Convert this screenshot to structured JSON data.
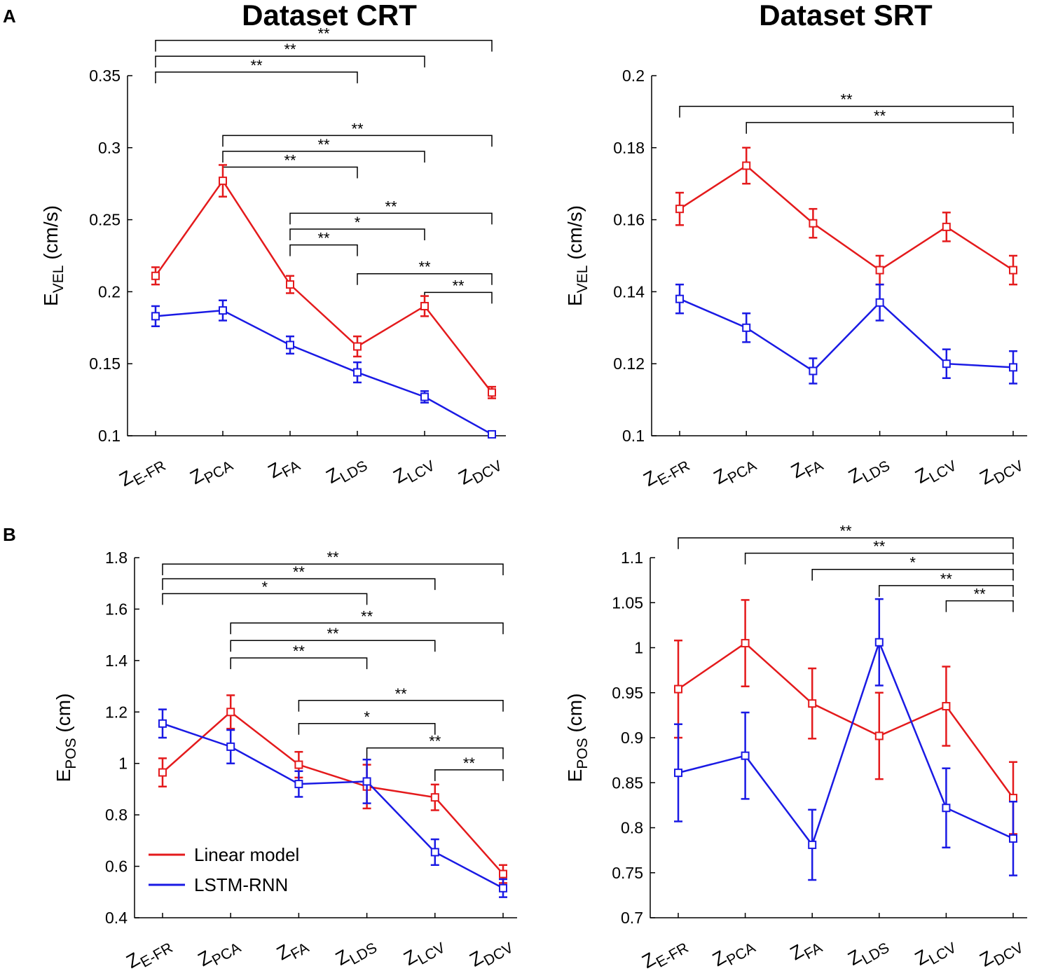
{
  "columns": [
    "Dataset CRT",
    "Dataset SRT"
  ],
  "row_labels": [
    "A",
    "B"
  ],
  "legend": [
    {
      "label": "Linear model",
      "color": "#e41a1c"
    },
    {
      "label": "LSTM-RNN",
      "color": "#1a1ae4"
    }
  ],
  "colors": {
    "linear": "#e41a1c",
    "lstm": "#1a1ae4",
    "axis": "#000000"
  },
  "chart_data": [
    {
      "id": "A-CRT",
      "type": "line",
      "categories": [
        [
          "Z",
          "E-FR"
        ],
        [
          "Z",
          "PCA"
        ],
        [
          "Z",
          "FA"
        ],
        [
          "Z",
          "LDS"
        ],
        [
          "Z",
          "LCV"
        ],
        [
          "Z",
          "DCV"
        ]
      ],
      "ylabel": {
        "main": "E",
        "sub": "VEL",
        "unit": " (cm/s)"
      },
      "ylim": [
        0.1,
        0.35
      ],
      "yticks": [
        "0.1",
        "0.15",
        "0.2",
        "0.25",
        "0.3",
        "0.35"
      ],
      "series": [
        {
          "name": "Linear model",
          "values": [
            0.211,
            0.277,
            0.205,
            0.162,
            0.19,
            0.13
          ],
          "err": [
            0.006,
            0.011,
            0.006,
            0.007,
            0.007,
            0.004
          ]
        },
        {
          "name": "LSTM-RNN",
          "values": [
            0.183,
            0.187,
            0.163,
            0.144,
            0.127,
            0.101
          ],
          "err": [
            0.007,
            0.007,
            0.006,
            0.007,
            0.004,
            0.002
          ]
        }
      ],
      "brackets": [
        {
          "from": 0,
          "to": 5,
          "y": 0.3745,
          "label": "**"
        },
        {
          "from": 0,
          "to": 3,
          "y": 0.3525,
          "label": "**"
        },
        {
          "from": 0,
          "to": 4,
          "y": 0.3635,
          "label": "**"
        },
        {
          "from": 1,
          "to": 5,
          "y": 0.3085,
          "label": "**"
        },
        {
          "from": 1,
          "to": 4,
          "y": 0.2975,
          "label": "**"
        },
        {
          "from": 1,
          "to": 3,
          "y": 0.2865,
          "label": "**"
        },
        {
          "from": 2,
          "to": 5,
          "y": 0.2545,
          "label": "**"
        },
        {
          "from": 2,
          "to": 4,
          "y": 0.2435,
          "label": "*"
        },
        {
          "from": 2,
          "to": 3,
          "y": 0.2325,
          "label": "**"
        },
        {
          "from": 3,
          "to": 5,
          "y": 0.2125,
          "label": "**"
        },
        {
          "from": 4,
          "to": 5,
          "y": 0.1995,
          "label": "**"
        }
      ]
    },
    {
      "id": "A-SRT",
      "type": "line",
      "categories": [
        [
          "Z",
          "E-FR"
        ],
        [
          "Z",
          "PCA"
        ],
        [
          "Z",
          "FA"
        ],
        [
          "Z",
          "LDS"
        ],
        [
          "Z",
          "LCV"
        ],
        [
          "Z",
          "DCV"
        ]
      ],
      "ylabel": {
        "main": "E",
        "sub": "VEL",
        "unit": " (cm/s)"
      },
      "ylim": [
        0.1,
        0.2
      ],
      "yticks": [
        "0.1",
        "0.12",
        "0.14",
        "0.16",
        "0.18",
        "0.2"
      ],
      "series": [
        {
          "name": "Linear model",
          "values": [
            0.163,
            0.175,
            0.159,
            0.146,
            0.158,
            0.146
          ],
          "err": [
            0.0045,
            0.005,
            0.004,
            0.004,
            0.004,
            0.004
          ]
        },
        {
          "name": "LSTM-RNN",
          "values": [
            0.138,
            0.13,
            0.118,
            0.137,
            0.12,
            0.119
          ],
          "err": [
            0.004,
            0.004,
            0.0035,
            0.005,
            0.004,
            0.0045
          ]
        }
      ],
      "brackets": [
        {
          "from": 0,
          "to": 5,
          "y": 0.1915,
          "label": "**"
        },
        {
          "from": 1,
          "to": 5,
          "y": 0.187,
          "label": "**"
        }
      ]
    },
    {
      "id": "B-CRT",
      "type": "line",
      "categories": [
        [
          "Z",
          "E-FR"
        ],
        [
          "Z",
          "PCA"
        ],
        [
          "Z",
          "FA"
        ],
        [
          "Z",
          "LDS"
        ],
        [
          "Z",
          "LCV"
        ],
        [
          "Z",
          "DCV"
        ]
      ],
      "ylabel": {
        "main": "E",
        "sub": "POS",
        "unit": " (cm)"
      },
      "ylim": [
        0.4,
        1.8
      ],
      "yticks": [
        "0.4",
        "0.6",
        "0.8",
        "1",
        "1.2",
        "1.4",
        "1.6",
        "1.8"
      ],
      "series": [
        {
          "name": "Linear model",
          "values": [
            0.965,
            1.2,
            0.995,
            0.91,
            0.868,
            0.57
          ],
          "err": [
            0.055,
            0.065,
            0.05,
            0.085,
            0.05,
            0.035
          ]
        },
        {
          "name": "LSTM-RNN",
          "values": [
            1.155,
            1.065,
            0.92,
            0.93,
            0.655,
            0.515
          ],
          "err": [
            0.055,
            0.065,
            0.05,
            0.085,
            0.05,
            0.035
          ]
        }
      ],
      "brackets": [
        {
          "from": 0,
          "to": 5,
          "y": 1.775,
          "label": "**"
        },
        {
          "from": 0,
          "to": 4,
          "y": 1.718,
          "label": "**"
        },
        {
          "from": 0,
          "to": 3,
          "y": 1.66,
          "label": "*"
        },
        {
          "from": 1,
          "to": 5,
          "y": 1.546,
          "label": "**"
        },
        {
          "from": 1,
          "to": 4,
          "y": 1.478,
          "label": "**"
        },
        {
          "from": 1,
          "to": 3,
          "y": 1.41,
          "label": "**"
        },
        {
          "from": 2,
          "to": 5,
          "y": 1.245,
          "label": "**"
        },
        {
          "from": 2,
          "to": 4,
          "y": 1.155,
          "label": "*"
        },
        {
          "from": 3,
          "to": 5,
          "y": 1.06,
          "label": "**"
        },
        {
          "from": 4,
          "to": 5,
          "y": 0.975,
          "label": "**"
        }
      ]
    },
    {
      "id": "B-SRT",
      "type": "line",
      "categories": [
        [
          "Z",
          "E-FR"
        ],
        [
          "Z",
          "PCA"
        ],
        [
          "Z",
          "FA"
        ],
        [
          "Z",
          "LDS"
        ],
        [
          "Z",
          "LCV"
        ],
        [
          "Z",
          "DCV"
        ]
      ],
      "ylabel": {
        "main": "E",
        "sub": "POS",
        "unit": " (cm)"
      },
      "ylim": [
        0.7,
        1.1
      ],
      "yticks": [
        "0.7",
        "0.75",
        "0.8",
        "0.85",
        "0.9",
        "0.95",
        "1",
        "1.05",
        "1.1"
      ],
      "series": [
        {
          "name": "Linear model",
          "values": [
            0.954,
            1.005,
            0.938,
            0.902,
            0.935,
            0.833
          ],
          "err": [
            0.054,
            0.048,
            0.039,
            0.048,
            0.044,
            0.04
          ]
        },
        {
          "name": "LSTM-RNN",
          "values": [
            0.861,
            0.88,
            0.781,
            1.006,
            0.822,
            0.788
          ],
          "err": [
            0.054,
            0.048,
            0.039,
            0.048,
            0.044,
            0.041
          ]
        }
      ],
      "brackets": [
        {
          "from": 0,
          "to": 5,
          "y": 1.122,
          "label": "**"
        },
        {
          "from": 1,
          "to": 5,
          "y": 1.105,
          "label": "**"
        },
        {
          "from": 2,
          "to": 5,
          "y": 1.087,
          "label": "*"
        },
        {
          "from": 3,
          "to": 5,
          "y": 1.069,
          "label": "**"
        },
        {
          "from": 4,
          "to": 5,
          "y": 1.052,
          "label": "**"
        }
      ]
    }
  ]
}
